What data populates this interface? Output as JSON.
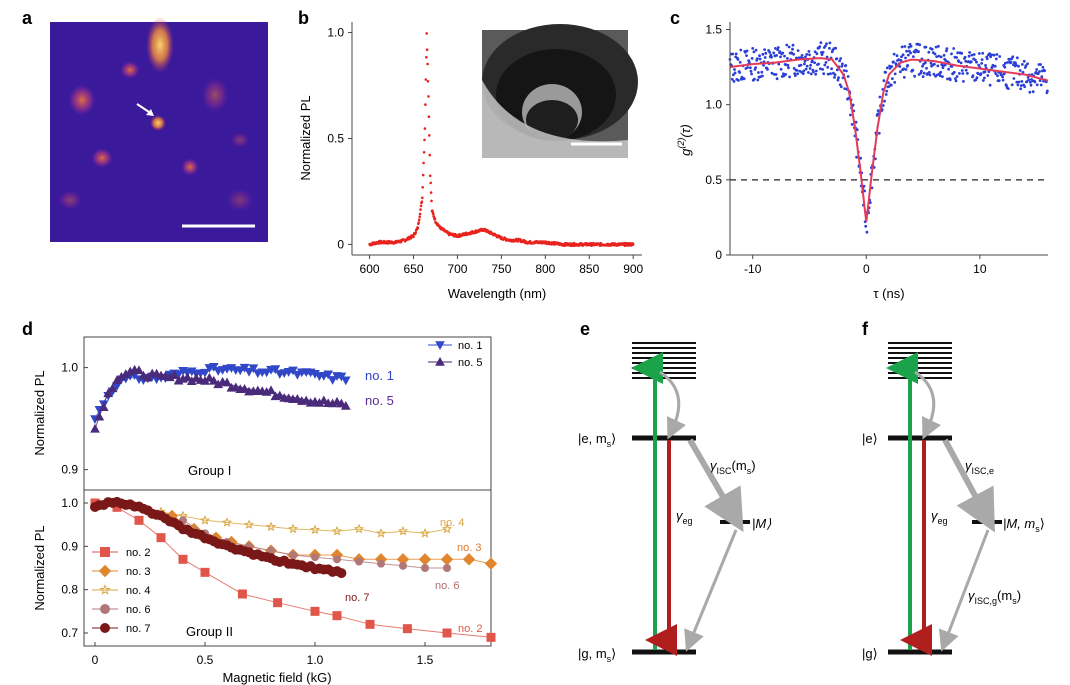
{
  "panel_labels": {
    "a": "a",
    "b": "b",
    "c": "c",
    "d": "d",
    "e": "e",
    "f": "f"
  },
  "colors": {
    "pl_spectrum": "#e8231e",
    "g2_points": "#2b3fd6",
    "g2_fit": "#e23b5a",
    "green_arrow": "#1aa34a",
    "red_arrow": "#b01e1e",
    "grey_arrow": "#a9a9a9"
  },
  "panel_b": {
    "ylabel": "Normalized PL",
    "xlabel": "Wavelength (nm)"
  },
  "panel_c": {
    "ylabel_main": "g",
    "ylabel_sup": "(2)",
    "ylabel_tail": "(τ)",
    "xlabel": "τ (ns)"
  },
  "panel_d": {
    "ylabel_top": "Normalized PL",
    "ylabel_bottom": "Normalized PL",
    "xlabel": "Magnetic field (kG)",
    "group1_label": "Group I",
    "group2_label": "Group II",
    "legend_top": [
      "no. 1",
      "no. 5"
    ],
    "legend_bottom": [
      "no. 2",
      "no. 3",
      "no. 4",
      "no. 6",
      "no. 7"
    ],
    "curve_labels": {
      "no1": "no. 1",
      "no5": "no. 5",
      "no2": "no. 2",
      "no3": "no. 3",
      "no4": "no. 4",
      "no6": "no. 6",
      "no7": "no. 7"
    }
  },
  "panel_e": {
    "e_state": "|e, m",
    "e_sub": "s",
    "g_state": "|g, m",
    "g_sub": "s",
    "m_state": "|M⟩",
    "gamma_isc": "γ",
    "gamma_isc_sub": "ISC",
    "gamma_isc_arg": "(m",
    "gamma_isc_arg_sub": "s",
    "gamma_eg": "γ",
    "gamma_eg_sub": "eg"
  },
  "panel_f": {
    "e_state": "|e⟩",
    "g_state": "|g⟩",
    "m_state": "|M, m",
    "m_sub": "s",
    "gamma_isc_e": "γ",
    "gamma_isc_e_sub": "ISC,e",
    "gamma_isc_g": "γ",
    "gamma_isc_g_sub": "ISC,g",
    "gamma_isc_g_arg": "(m",
    "gamma_isc_g_arg_sub": "s",
    "gamma_eg": "γ",
    "gamma_eg_sub": "eg"
  },
  "chart_data": [
    {
      "type": "scatter",
      "panel": "b",
      "xlabel": "Wavelength (nm)",
      "ylabel": "Normalized PL",
      "xlim": [
        580,
        910
      ],
      "ylim": [
        -0.05,
        1.05
      ],
      "xticks": [
        600,
        650,
        700,
        750,
        800,
        850,
        900
      ],
      "yticks": [
        0,
        0.5,
        1.0
      ],
      "ytick_labels": [
        "0",
        "0.5",
        "1.0"
      ],
      "series": [
        {
          "x": [
            600,
            610,
            620,
            630,
            640,
            650,
            655,
            660,
            663,
            665,
            667,
            669,
            671,
            675,
            680,
            690,
            700,
            710,
            720,
            730,
            740,
            750,
            760,
            770,
            780,
            800,
            820,
            850,
            880,
            900
          ],
          "values": [
            0.0,
            0.01,
            0.01,
            0.01,
            0.02,
            0.04,
            0.08,
            0.22,
            0.55,
            1.0,
            0.7,
            0.33,
            0.16,
            0.11,
            0.08,
            0.05,
            0.04,
            0.05,
            0.06,
            0.07,
            0.05,
            0.03,
            0.02,
            0.02,
            0.01,
            0.01,
            0.0,
            0.0,
            0.0,
            0.0
          ]
        }
      ]
    },
    {
      "type": "scatter",
      "panel": "c",
      "xlabel": "τ (ns)",
      "xlim": [
        -12,
        16
      ],
      "ylim": [
        0,
        1.55
      ],
      "xticks": [
        -10,
        0,
        10
      ],
      "yticks": [
        0,
        0.5,
        1.0,
        1.5
      ],
      "ytick_labels": [
        "0",
        "0.5",
        "1.0",
        "1.5"
      ],
      "reference_line": 0.5,
      "series": [
        {
          "x": [
            -12,
            -10,
            -8,
            -6,
            -4,
            -3,
            -2,
            -1.5,
            -1,
            -0.5,
            0,
            0.5,
            1,
            1.5,
            2,
            3,
            4,
            6,
            8,
            10,
            12,
            14,
            16
          ],
          "values": [
            1.25,
            1.27,
            1.28,
            1.3,
            1.31,
            1.3,
            1.2,
            1.08,
            0.85,
            0.55,
            0.22,
            0.55,
            0.85,
            1.08,
            1.2,
            1.28,
            1.3,
            1.29,
            1.26,
            1.24,
            1.22,
            1.2,
            1.16
          ]
        }
      ]
    },
    {
      "type": "line",
      "panel": "d-top",
      "xlim": [
        -0.05,
        1.8
      ],
      "ylim": [
        0.88,
        1.03
      ],
      "yticks": [
        0.9,
        1.0
      ],
      "ytick_labels": [
        "0.9",
        "1.0"
      ],
      "series": [
        {
          "name": "no. 1",
          "x": [
            0,
            0.05,
            0.1,
            0.15,
            0.2,
            0.3,
            0.4,
            0.5,
            0.6,
            0.7,
            0.8,
            0.9,
            1.0,
            1.1,
            1.15
          ],
          "values": [
            0.95,
            0.97,
            0.985,
            0.99,
            0.99,
            0.99,
            0.995,
            0.998,
            0.998,
            0.997,
            0.996,
            0.995,
            0.993,
            0.99,
            0.989
          ]
        },
        {
          "name": "no. 5",
          "x": [
            0,
            0.05,
            0.1,
            0.15,
            0.2,
            0.3,
            0.4,
            0.5,
            0.6,
            0.7,
            0.8,
            0.9,
            1.0,
            1.1,
            1.15
          ],
          "values": [
            0.94,
            0.97,
            0.99,
            0.995,
            0.995,
            0.99,
            0.99,
            0.988,
            0.984,
            0.979,
            0.975,
            0.971,
            0.967,
            0.964,
            0.963
          ]
        }
      ]
    },
    {
      "type": "line",
      "panel": "d-bottom",
      "xlim": [
        -0.05,
        1.8
      ],
      "ylim": [
        0.67,
        1.03
      ],
      "xticks": [
        0,
        0.5,
        1.0,
        1.5
      ],
      "xtick_labels": [
        "0",
        "0.5",
        "1.0",
        "1.5"
      ],
      "yticks": [
        0.7,
        0.8,
        0.9,
        1.0
      ],
      "ytick_labels": [
        "0.7",
        "0.8",
        "0.9",
        "1.0"
      ],
      "series": [
        {
          "name": "no. 2",
          "x": [
            0,
            0.1,
            0.2,
            0.3,
            0.4,
            0.5,
            0.67,
            0.83,
            1.0,
            1.1,
            1.25,
            1.42,
            1.6,
            1.8
          ],
          "values": [
            1.0,
            0.99,
            0.96,
            0.92,
            0.87,
            0.84,
            0.79,
            0.77,
            0.75,
            0.74,
            0.72,
            0.71,
            0.7,
            0.69
          ]
        },
        {
          "name": "no. 3",
          "x": [
            0.35,
            0.45,
            0.55,
            0.62,
            0.7,
            0.8,
            0.9,
            1.0,
            1.1,
            1.2,
            1.3,
            1.4,
            1.5,
            1.6,
            1.7,
            1.8
          ],
          "values": [
            0.97,
            0.94,
            0.92,
            0.91,
            0.9,
            0.89,
            0.88,
            0.88,
            0.88,
            0.87,
            0.87,
            0.87,
            0.87,
            0.87,
            0.87,
            0.86
          ]
        },
        {
          "name": "no. 4",
          "x": [
            0,
            0.1,
            0.2,
            0.3,
            0.4,
            0.5,
            0.6,
            0.7,
            0.8,
            0.9,
            1.0,
            1.1,
            1.2,
            1.3,
            1.4,
            1.5,
            1.6
          ],
          "values": [
            1.0,
            0.99,
            0.99,
            0.98,
            0.97,
            0.96,
            0.955,
            0.95,
            0.945,
            0.94,
            0.938,
            0.935,
            0.94,
            0.93,
            0.935,
            0.93,
            0.94
          ]
        },
        {
          "name": "no. 6",
          "x": [
            0.4,
            0.5,
            0.6,
            0.7,
            0.8,
            0.9,
            1.0,
            1.1,
            1.2,
            1.3,
            1.4,
            1.5,
            1.6
          ],
          "values": [
            0.96,
            0.93,
            0.91,
            0.9,
            0.89,
            0.88,
            0.875,
            0.87,
            0.865,
            0.86,
            0.855,
            0.85,
            0.85
          ]
        },
        {
          "name": "no. 7",
          "x": [
            0,
            0.05,
            0.1,
            0.15,
            0.2,
            0.3,
            0.4,
            0.5,
            0.6,
            0.7,
            0.8,
            0.9,
            1.0,
            1.1,
            1.13
          ],
          "values": [
            0.99,
            1.0,
            1.0,
            0.995,
            0.99,
            0.97,
            0.94,
            0.92,
            0.9,
            0.885,
            0.87,
            0.86,
            0.85,
            0.84,
            0.835
          ]
        }
      ]
    }
  ]
}
